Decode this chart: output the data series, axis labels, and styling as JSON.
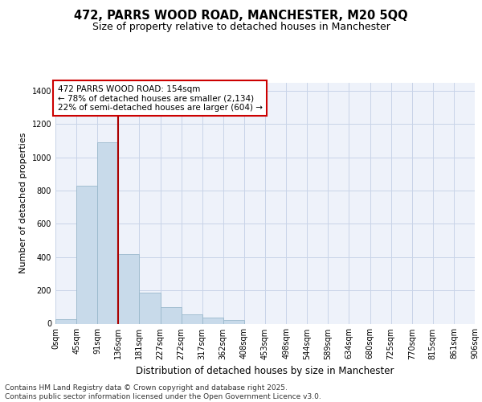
{
  "title": "472, PARRS WOOD ROAD, MANCHESTER, M20 5QQ",
  "subtitle": "Size of property relative to detached houses in Manchester",
  "xlabel": "Distribution of detached houses by size in Manchester",
  "ylabel": "Number of detached properties",
  "bar_values": [
    25,
    830,
    1090,
    420,
    185,
    100,
    55,
    35,
    20,
    0,
    0,
    0,
    0,
    0,
    0,
    0,
    0,
    0,
    0,
    0
  ],
  "bin_labels": [
    "0sqm",
    "45sqm",
    "91sqm",
    "136sqm",
    "181sqm",
    "227sqm",
    "272sqm",
    "317sqm",
    "362sqm",
    "408sqm",
    "453sqm",
    "498sqm",
    "544sqm",
    "589sqm",
    "634sqm",
    "680sqm",
    "725sqm",
    "770sqm",
    "815sqm",
    "861sqm",
    "906sqm"
  ],
  "bar_color": "#c8daea",
  "bar_edge_color": "#9ab8cc",
  "grid_color": "#c8d4e8",
  "background_color": "#eef2fa",
  "annotation_box_color": "#cc0000",
  "vline_color": "#aa0000",
  "vline_x": 3.0,
  "annotation_text": "472 PARRS WOOD ROAD: 154sqm\n← 78% of detached houses are smaller (2,134)\n22% of semi-detached houses are larger (604) →",
  "annotation_fontsize": 7.5,
  "ylim": [
    0,
    1450
  ],
  "yticks": [
    0,
    200,
    400,
    600,
    800,
    1000,
    1200,
    1400
  ],
  "footer_text": "Contains HM Land Registry data © Crown copyright and database right 2025.\nContains public sector information licensed under the Open Government Licence v3.0.",
  "title_fontsize": 10.5,
  "subtitle_fontsize": 9,
  "xlabel_fontsize": 8.5,
  "ylabel_fontsize": 8,
  "tick_fontsize": 7,
  "footer_fontsize": 6.5
}
